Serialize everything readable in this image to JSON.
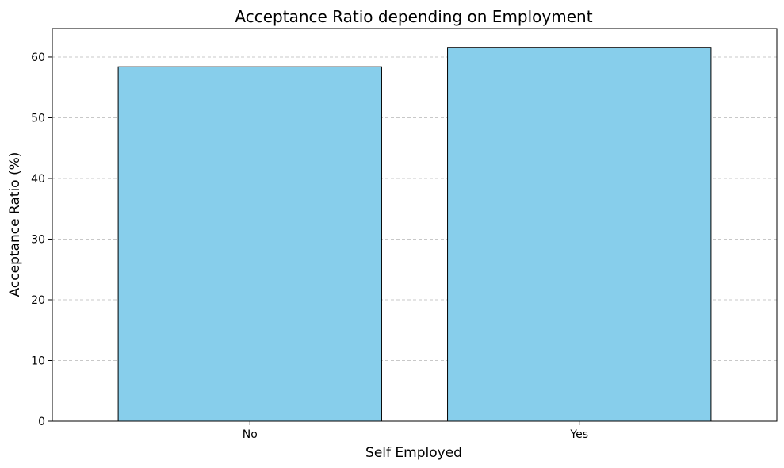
{
  "chart_data": {
    "type": "bar",
    "title": "Acceptance Ratio depending on Employment",
    "xlabel": "Self Employed",
    "ylabel": "Acceptance Ratio (%)",
    "categories": [
      "No",
      "Yes"
    ],
    "values": [
      58.4,
      61.6
    ],
    "ylim": [
      0,
      64.7
    ],
    "yticks": [
      0,
      10,
      20,
      30,
      40,
      50,
      60
    ],
    "grid": "y-dashed",
    "bar_color": "#87CEEB",
    "edge_color": "#000000",
    "grid_color": "#c8c8c8"
  }
}
